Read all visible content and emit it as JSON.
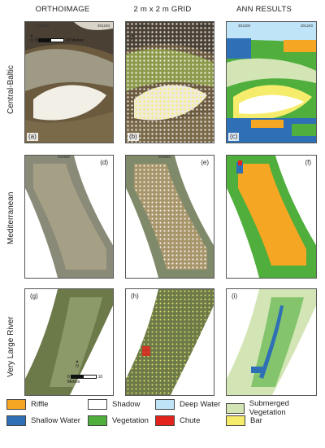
{
  "headers": [
    "ORTHOIMAGE",
    "2 m x 2 m GRID",
    "ANN RESULTS"
  ],
  "rows": [
    {
      "label": "Central-Baltic",
      "panels": [
        "(a)",
        "(b)",
        "(c)"
      ]
    },
    {
      "label": "Mediterranean",
      "panels": [
        "(d)",
        "(e)",
        "(f)"
      ]
    },
    {
      "label": "Very Large River",
      "panels": [
        "(g)",
        "(h)",
        "(i)"
      ]
    }
  ],
  "coords": {
    "baltic_top_left": "301200",
    "baltic_top_right": "301240",
    "baltic_side_top": "237180",
    "baltic_side_bottom": "237120",
    "med_top": "600880",
    "med_side_top": "4320040",
    "med_side_bottom": "4320000",
    "vlr_top": "76764",
    "vlr_side_top": "43279",
    "vlr_side_bottom": "43279"
  },
  "scale": {
    "ticks": [
      "0",
      "5",
      "10 Metres"
    ]
  },
  "north_label": "N",
  "legend": [
    {
      "label": "Riffle",
      "color": "#f5a623"
    },
    {
      "label": "Shadow",
      "color": "#ffffff"
    },
    {
      "label": "Deep Water",
      "color": "#bfe3f7"
    },
    {
      "label": "Submerged Vegetation",
      "color": "#d3e5b5"
    },
    {
      "label": "Shallow Water",
      "color": "#2f6fb5"
    },
    {
      "label": "Vegetation",
      "color": "#4fae3c"
    },
    {
      "label": "Chute",
      "color": "#e3231b"
    },
    {
      "label": "Bar",
      "color": "#f6ec6c"
    }
  ]
}
